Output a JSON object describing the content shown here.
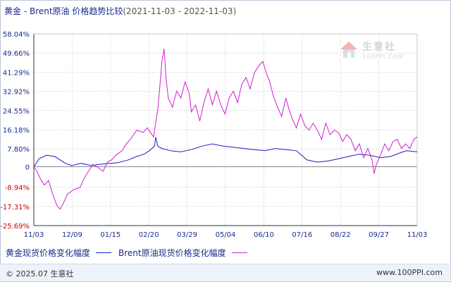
{
  "title": {
    "main": "黄金 - Brent原油 价格趋势比较",
    "range": "(2021-11-03 - 2022-11-03)"
  },
  "watermark": {
    "text": "生意社",
    "sub": "100PPI.COM"
  },
  "footer": {
    "copyright": "© 2025.07 生意社",
    "site": "www.100PPI.com"
  },
  "colors": {
    "gold": "#1c1cc8",
    "brent": "#d21ed2",
    "axis": "#333333",
    "grid": "#c8c8c8",
    "tick_text": "#1a2b8c",
    "neg_text": "#cc0000"
  },
  "chart_data": {
    "type": "line",
    "title": "黄金 - Brent原油 价格趋势比较",
    "xlabel": "",
    "ylabel": "",
    "ylim": [
      -25.69,
      58.04
    ],
    "yticks": [
      "58.04%",
      "49.66%",
      "41.29%",
      "32.92%",
      "24.55%",
      "16.18%",
      "7.80%",
      "0",
      "-8.94%",
      "-17.31%",
      "-25.69%"
    ],
    "ytick_values": [
      58.04,
      49.66,
      41.29,
      32.92,
      24.55,
      16.18,
      7.8,
      0,
      -8.94,
      -17.31,
      -25.69
    ],
    "xticks": [
      "11/03",
      "12/09",
      "01/15",
      "02/20",
      "03/29",
      "05/04",
      "06/10",
      "07/16",
      "08/22",
      "09/27",
      "11/03"
    ],
    "x_range_days": [
      0,
      365
    ],
    "grid": true,
    "legend_position": "bottom-left",
    "series": [
      {
        "name": "黄金现货价格变化幅度",
        "color": "#1c1cc8",
        "points": [
          [
            0,
            0
          ],
          [
            5,
            3.5
          ],
          [
            12,
            5.0
          ],
          [
            20,
            4.5
          ],
          [
            30,
            1.5
          ],
          [
            36,
            0.5
          ],
          [
            45,
            1.5
          ],
          [
            55,
            0.5
          ],
          [
            62,
            1.0
          ],
          [
            72,
            1.5
          ],
          [
            80,
            1.8
          ],
          [
            90,
            3.0
          ],
          [
            98,
            4.5
          ],
          [
            105,
            5.5
          ],
          [
            110,
            7.0
          ],
          [
            115,
            9.0
          ],
          [
            116,
            13.0
          ],
          [
            118,
            9.0
          ],
          [
            122,
            8.0
          ],
          [
            130,
            7.0
          ],
          [
            140,
            6.5
          ],
          [
            150,
            7.5
          ],
          [
            160,
            9.0
          ],
          [
            170,
            10.0
          ],
          [
            180,
            9.0
          ],
          [
            190,
            8.5
          ],
          [
            200,
            8.0
          ],
          [
            210,
            7.5
          ],
          [
            220,
            7.0
          ],
          [
            230,
            8.0
          ],
          [
            240,
            7.5
          ],
          [
            250,
            7.0
          ],
          [
            255,
            5.0
          ],
          [
            260,
            3.0
          ],
          [
            270,
            2.0
          ],
          [
            280,
            2.5
          ],
          [
            290,
            3.5
          ],
          [
            300,
            4.5
          ],
          [
            310,
            5.5
          ],
          [
            320,
            5.0
          ],
          [
            330,
            4.0
          ],
          [
            340,
            4.5
          ],
          [
            348,
            6.0
          ],
          [
            355,
            7.0
          ],
          [
            365,
            6.5
          ]
        ]
      },
      {
        "name": "Brent原油现货价格变化幅度",
        "color": "#d21ed2",
        "points": [
          [
            0,
            0
          ],
          [
            3,
            -2.0
          ],
          [
            6,
            -5.0
          ],
          [
            10,
            -8.0
          ],
          [
            14,
            -6.0
          ],
          [
            18,
            -12.0
          ],
          [
            22,
            -17.0
          ],
          [
            25,
            -18.5
          ],
          [
            28,
            -16.0
          ],
          [
            32,
            -12.0
          ],
          [
            38,
            -10.0
          ],
          [
            44,
            -9.0
          ],
          [
            48,
            -5.0
          ],
          [
            52,
            -2.0
          ],
          [
            56,
            1.0
          ],
          [
            60,
            0.0
          ],
          [
            66,
            -2.0
          ],
          [
            70,
            2.0
          ],
          [
            74,
            3.0
          ],
          [
            78,
            5.0
          ],
          [
            84,
            7.0
          ],
          [
            88,
            10.0
          ],
          [
            92,
            12.0
          ],
          [
            98,
            16.0
          ],
          [
            104,
            15.0
          ],
          [
            108,
            17.0
          ],
          [
            111,
            15.0
          ],
          [
            114,
            13.0
          ],
          [
            118,
            25.0
          ],
          [
            120,
            35.0
          ],
          [
            122,
            46.0
          ],
          [
            124,
            51.5
          ],
          [
            126,
            38.0
          ],
          [
            128,
            30.0
          ],
          [
            132,
            26.0
          ],
          [
            136,
            33.0
          ],
          [
            140,
            30.0
          ],
          [
            144,
            37.0
          ],
          [
            148,
            32.0
          ],
          [
            150,
            24.0
          ],
          [
            154,
            27.0
          ],
          [
            158,
            20.0
          ],
          [
            162,
            28.0
          ],
          [
            166,
            34.0
          ],
          [
            170,
            27.0
          ],
          [
            174,
            33.0
          ],
          [
            178,
            27.0
          ],
          [
            182,
            23.0
          ],
          [
            186,
            30.0
          ],
          [
            190,
            33.0
          ],
          [
            194,
            28.0
          ],
          [
            198,
            36.0
          ],
          [
            202,
            39.0
          ],
          [
            206,
            34.0
          ],
          [
            210,
            41.0
          ],
          [
            214,
            44.0
          ],
          [
            218,
            46.0
          ],
          [
            222,
            40.0
          ],
          [
            224,
            38.0
          ],
          [
            228,
            31.0
          ],
          [
            232,
            26.0
          ],
          [
            236,
            22.0
          ],
          [
            240,
            30.0
          ],
          [
            243,
            25.0
          ],
          [
            246,
            21.0
          ],
          [
            250,
            17.0
          ],
          [
            254,
            23.0
          ],
          [
            258,
            18.0
          ],
          [
            262,
            16.0
          ],
          [
            266,
            19.0
          ],
          [
            270,
            16.0
          ],
          [
            274,
            12.0
          ],
          [
            278,
            19.0
          ],
          [
            282,
            14.0
          ],
          [
            286,
            16.0
          ],
          [
            290,
            15.0
          ],
          [
            294,
            11.0
          ],
          [
            298,
            14.0
          ],
          [
            302,
            12.0
          ],
          [
            306,
            7.0
          ],
          [
            310,
            10.0
          ],
          [
            314,
            4.0
          ],
          [
            318,
            8.0
          ],
          [
            322,
            3.0
          ],
          [
            324,
            -3.0
          ],
          [
            326,
            1.0
          ],
          [
            330,
            5.0
          ],
          [
            334,
            10.0
          ],
          [
            338,
            7.0
          ],
          [
            342,
            11.0
          ],
          [
            346,
            12.0
          ],
          [
            350,
            8.0
          ],
          [
            354,
            10.0
          ],
          [
            358,
            8.0
          ],
          [
            362,
            12.0
          ],
          [
            365,
            13.0
          ]
        ]
      }
    ]
  }
}
